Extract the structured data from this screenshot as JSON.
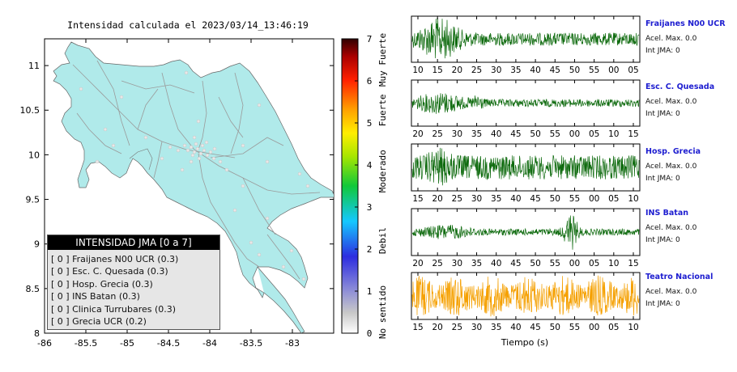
{
  "map": {
    "title": "Intensidad calculada el 2023/03/14_13:46:19",
    "x_ticks": [
      "-86",
      "-85.5",
      "-85",
      "-84.5",
      "-84",
      "-83.5",
      "-83"
    ],
    "y_ticks": [
      "11",
      "10.5",
      "10",
      "9.5",
      "9",
      "8.5",
      "8"
    ]
  },
  "colorbar": {
    "ticks": [
      "0",
      "1",
      "2",
      "3",
      "4",
      "5",
      "6",
      "7"
    ],
    "category_labels": [
      "No sentido",
      "Debil",
      "Moderado",
      "Fuerte",
      "Muy Fuerte"
    ]
  },
  "intensity_panel": {
    "title": "INTENSIDAD JMA [0 a 7]",
    "rows": [
      "[ 0 ]  Fraijanes N00 UCR (0.3)",
      "[ 0 ]  Esc. C. Quesada (0.3)",
      "[ 0 ]  Hosp. Grecia (0.3)",
      "[ 0 ]  INS Batan (0.3)",
      "[ 0 ]  Clinica Turrubares (0.3)",
      "[ 0 ]  Grecia UCR (0.2)"
    ]
  },
  "waveforms": {
    "xlabel": "Tiempo (s)",
    "stations": [
      {
        "name": "Fraijanes N00 UCR",
        "acel": "Acel. Max. 0.0",
        "int": "Int JMA: 0",
        "color": "#0f6b0f",
        "ticks": [
          "10",
          "15",
          "20",
          "25",
          "30",
          "35",
          "40",
          "45",
          "50",
          "55",
          "00",
          "05"
        ]
      },
      {
        "name": "Esc. C. Quesada",
        "acel": "Acel. Max. 0.0",
        "int": "Int JMA: 0",
        "color": "#0f6b0f",
        "ticks": [
          "20",
          "25",
          "30",
          "35",
          "40",
          "45",
          "50",
          "55",
          "00",
          "05",
          "10",
          "15"
        ]
      },
      {
        "name": "Hosp. Grecia",
        "acel": "Acel. Max. 0.0",
        "int": "Int JMA: 0",
        "color": "#0f6b0f",
        "ticks": [
          "15",
          "20",
          "25",
          "30",
          "35",
          "40",
          "45",
          "50",
          "55",
          "00",
          "05",
          "10"
        ]
      },
      {
        "name": "INS Batan",
        "acel": "Acel. Max. 0.0",
        "int": "Int JMA: 0",
        "color": "#0f6b0f",
        "ticks": [
          "20",
          "25",
          "30",
          "35",
          "40",
          "45",
          "50",
          "55",
          "00",
          "05",
          "10",
          "15"
        ]
      },
      {
        "name": "Teatro Nacional",
        "acel": "Acel. Max. 0.0",
        "int": "Int JMA: 0",
        "color": "#f5a000",
        "ticks": [
          "15",
          "20",
          "25",
          "30",
          "35",
          "40",
          "45",
          "50",
          "55",
          "00",
          "05",
          "10"
        ]
      }
    ]
  },
  "chart_data": [
    {
      "type": "scatter",
      "title": "Intensidad calculada el 2023/03/14_13:46:19",
      "xlim": [
        -86,
        -82.5
      ],
      "ylim": [
        8,
        11.3
      ],
      "xticks": [
        -86,
        -85.5,
        -85,
        -84.5,
        -84,
        -83.5,
        -83
      ],
      "yticks": [
        8,
        8.5,
        9,
        9.5,
        10,
        10.5,
        11
      ],
      "colorbar": {
        "range": [
          0,
          7
        ],
        "ticks": [
          0,
          1,
          2,
          3,
          4,
          5,
          6,
          7
        ]
      },
      "stations_jma": [
        {
          "name": "Fraijanes N00 UCR",
          "jma": 0,
          "value": 0.3
        },
        {
          "name": "Esc. C. Quesada",
          "jma": 0,
          "value": 0.3
        },
        {
          "name": "Hosp. Grecia",
          "jma": 0,
          "value": 0.3
        },
        {
          "name": "INS Batan",
          "jma": 0,
          "value": 0.3
        },
        {
          "name": "Clinica Turrubares",
          "jma": 0,
          "value": 0.3
        },
        {
          "name": "Grecia UCR",
          "jma": 0,
          "value": 0.2
        }
      ]
    },
    {
      "type": "line",
      "xlabel": "Tiempo (s)",
      "series": [
        {
          "name": "Fraijanes N00 UCR"
        },
        {
          "name": "Esc. C. Quesada"
        },
        {
          "name": "Hosp. Grecia"
        },
        {
          "name": "INS Batan"
        },
        {
          "name": "Teatro Nacional"
        }
      ]
    }
  ]
}
